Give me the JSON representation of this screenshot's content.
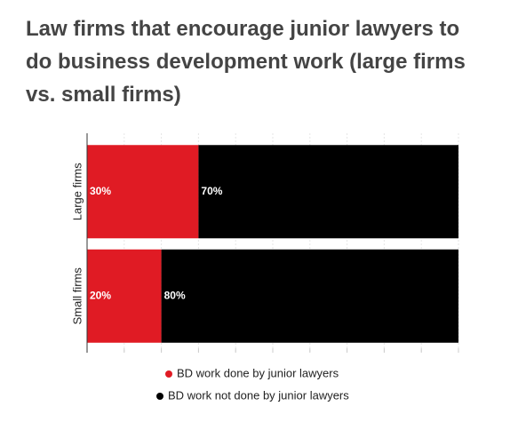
{
  "chart_data": {
    "type": "stacked-bar-horizontal",
    "title": "Law firms that encourage junior lawyers to do business development work (large firms vs. small firms)",
    "categories": [
      "Large firms",
      "Small firms"
    ],
    "series": [
      {
        "name": "BD work done by junior lawyers",
        "color": "#e01b24",
        "values": [
          30,
          20
        ],
        "value_labels": [
          "30%",
          "20%"
        ]
      },
      {
        "name": "BD work not done by junior lawyers",
        "color": "#000000",
        "values": [
          70,
          80
        ],
        "value_labels": [
          "70%",
          "80%"
        ]
      }
    ],
    "xlim": [
      0,
      100
    ],
    "xticks": [
      0,
      10,
      20,
      30,
      40,
      50,
      60,
      70,
      80,
      90,
      100
    ],
    "grid": true
  }
}
